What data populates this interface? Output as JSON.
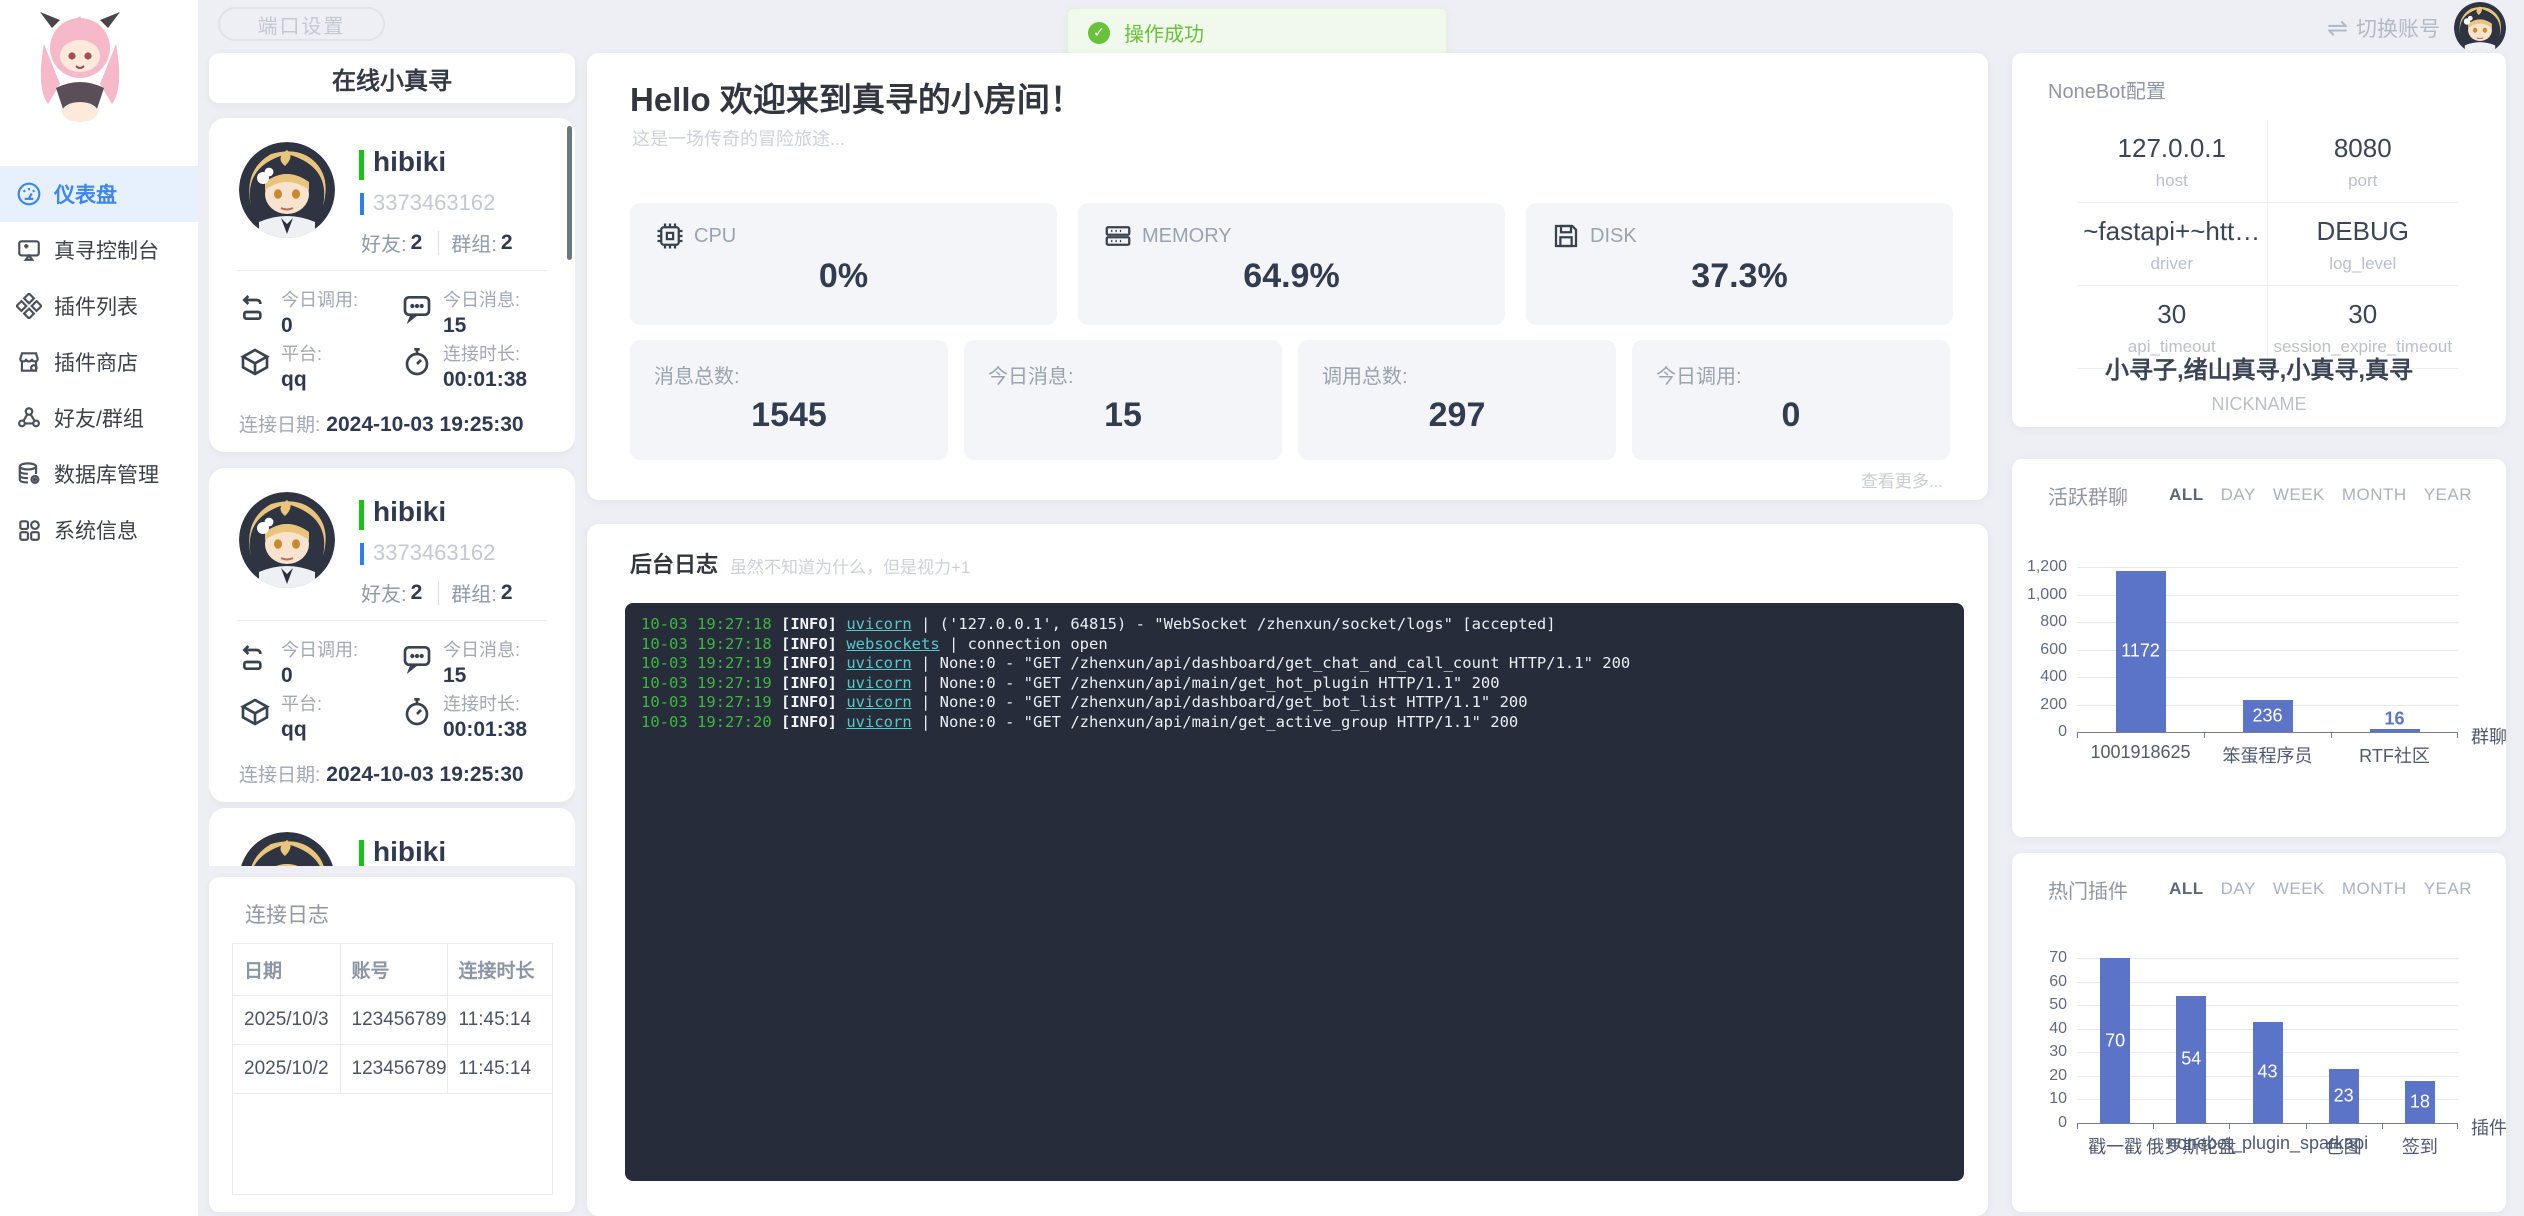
{
  "topbar": {
    "port_button": "端口设置",
    "toast": "操作成功",
    "switch_account": "切换账号"
  },
  "sidebar": {
    "items": [
      {
        "label": "仪表盘",
        "icon": "dashboard-icon",
        "active": true
      },
      {
        "label": "真寻控制台",
        "icon": "console-icon",
        "active": false
      },
      {
        "label": "插件列表",
        "icon": "plugin-list-icon",
        "active": false
      },
      {
        "label": "插件商店",
        "icon": "plugin-store-icon",
        "active": false
      },
      {
        "label": "好友/群组",
        "icon": "friends-groups-icon",
        "active": false
      },
      {
        "label": "数据库管理",
        "icon": "database-icon",
        "active": false
      },
      {
        "label": "系统信息",
        "icon": "system-info-icon",
        "active": false
      }
    ]
  },
  "online_panel": {
    "title": "在线小真寻",
    "bots": [
      {
        "name": "hibiki",
        "id": "3373463162",
        "friends_label": "好友:",
        "friends": "2",
        "groups_label": "群组:",
        "groups": "2",
        "stats": [
          {
            "label": "今日调用:",
            "value": "0",
            "icon": "call-icon"
          },
          {
            "label": "今日消息:",
            "value": "15",
            "icon": "message-icon"
          },
          {
            "label": "平台:",
            "value": "qq",
            "icon": "platform-icon"
          },
          {
            "label": "连接时长:",
            "value": "00:01:38",
            "icon": "duration-icon"
          }
        ],
        "date_label": "连接日期:",
        "date": "2024-10-03 19:25:30"
      },
      {
        "name": "hibiki",
        "id": "3373463162",
        "friends_label": "好友:",
        "friends": "2",
        "groups_label": "群组:",
        "groups": "2",
        "stats": [
          {
            "label": "今日调用:",
            "value": "0",
            "icon": "call-icon"
          },
          {
            "label": "今日消息:",
            "value": "15",
            "icon": "message-icon"
          },
          {
            "label": "平台:",
            "value": "qq",
            "icon": "platform-icon"
          },
          {
            "label": "连接时长:",
            "value": "00:01:38",
            "icon": "duration-icon"
          }
        ],
        "date_label": "连接日期:",
        "date": "2024-10-03 19:25:30"
      },
      {
        "name": "hibiki"
      }
    ]
  },
  "connect_log": {
    "title": "连接日志",
    "columns": [
      "日期",
      "账号",
      "连接时长"
    ],
    "rows": [
      [
        "2025/10/3",
        "123456789",
        "11:45:14"
      ],
      [
        "2025/10/2",
        "123456789",
        "11:45:14"
      ]
    ]
  },
  "main": {
    "greeting": "Hello 欢迎来到真寻的小房间！",
    "subtitle": "这是一场传奇的冒险旅途...",
    "system_cards": [
      {
        "label": "CPU",
        "icon": "cpu-icon",
        "value": "0%"
      },
      {
        "label": "MEMORY",
        "icon": "memory-icon",
        "value": "64.9%"
      },
      {
        "label": "DISK",
        "icon": "disk-icon",
        "value": "37.3%"
      }
    ],
    "count_cards": [
      {
        "label": "消息总数:",
        "value": "1545"
      },
      {
        "label": "今日消息:",
        "value": "15"
      },
      {
        "label": "调用总数:",
        "value": "297"
      },
      {
        "label": "今日调用:",
        "value": "0"
      }
    ],
    "more_link": "查看更多...",
    "log_panel": {
      "title": "后台日志",
      "subtitle": "虽然不知道为什么，但是视力+1",
      "lines": [
        {
          "time": "10-03 19:27:18",
          "level": "[INFO]",
          "source": "uvicorn",
          "message": "| ('127.0.0.1', 64815) - \"WebSocket /zhenxun/socket/logs\" [accepted]"
        },
        {
          "time": "10-03 19:27:18",
          "level": "[INFO]",
          "source": "websockets",
          "message": "| connection open"
        },
        {
          "time": "10-03 19:27:19",
          "level": "[INFO]",
          "source": "uvicorn",
          "message": "| None:0 - \"GET /zhenxun/api/dashboard/get_chat_and_call_count HTTP/1.1\" 200"
        },
        {
          "time": "10-03 19:27:19",
          "level": "[INFO]",
          "source": "uvicorn",
          "message": "| None:0 - \"GET /zhenxun/api/main/get_hot_plugin HTTP/1.1\" 200"
        },
        {
          "time": "10-03 19:27:19",
          "level": "[INFO]",
          "source": "uvicorn",
          "message": "| None:0 - \"GET /zhenxun/api/dashboard/get_bot_list HTTP/1.1\" 200"
        },
        {
          "time": "10-03 19:27:20",
          "level": "[INFO]",
          "source": "uvicorn",
          "message": "| None:0 - \"GET /zhenxun/api/main/get_active_group HTTP/1.1\" 200"
        }
      ]
    }
  },
  "nonebot_config": {
    "title": "NoneBot配置",
    "items": [
      {
        "value": "127.0.0.1",
        "label": "host"
      },
      {
        "value": "8080",
        "label": "port"
      },
      {
        "value": "~fastapi+~htt…",
        "label": "driver"
      },
      {
        "value": "DEBUG",
        "label": "log_level"
      },
      {
        "value": "30",
        "label": "api_timeout"
      },
      {
        "value": "30",
        "label": "session_expire_timeout"
      }
    ],
    "nickname": {
      "value": "小寻子,绪山真寻,小真寻,真寻",
      "label": "NICKNAME"
    }
  },
  "chart_data": [
    {
      "type": "bar",
      "title": "活跃群聊",
      "tabs": [
        "ALL",
        "DAY",
        "WEEK",
        "MONTH",
        "YEAR"
      ],
      "active_tab": "ALL",
      "categories": [
        "1001918625",
        "笨蛋程序员",
        "RTF社区"
      ],
      "values": [
        1172,
        236,
        16
      ],
      "ylim": [
        0,
        1200
      ],
      "ytick_step": 200,
      "xlabel": "群聊",
      "grid": true,
      "legend": "none",
      "bar_color": "#5b74c8"
    },
    {
      "type": "bar",
      "title": "热门插件",
      "tabs": [
        "ALL",
        "DAY",
        "WEEK",
        "MONTH",
        "YEAR"
      ],
      "active_tab": "ALL",
      "categories": [
        "戳一戳",
        "俄罗斯轮盘",
        "nonebot_plugin_sparkapi",
        "色图",
        "签到"
      ],
      "values": [
        70,
        54,
        43,
        23,
        18
      ],
      "ylim": [
        0,
        70
      ],
      "ytick_step": 10,
      "xlabel": "插件",
      "grid": true,
      "legend": "none",
      "bar_color": "#5b74c8"
    }
  ],
  "colors": {
    "primary": "#3d85f2",
    "success": "#67c23a",
    "bar": "#5b74c8",
    "online_bar": "#17c317",
    "id_bar": "#2f7ef0",
    "console_bg": "#262c3a"
  }
}
